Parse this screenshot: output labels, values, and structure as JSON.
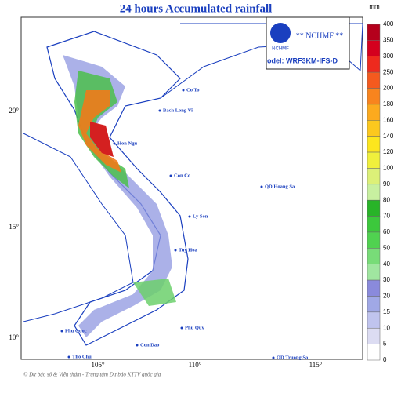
{
  "title": "24 hours Accumulated rainfall",
  "logo": {
    "badge": "NCHMF",
    "name": "** NCHMF **",
    "model": "odel: WRF3KM-IFS-D"
  },
  "colorbar": {
    "unit": "mm",
    "labels": [
      400,
      350,
      300,
      250,
      200,
      180,
      160,
      140,
      120,
      100,
      90,
      80,
      70,
      60,
      50,
      40,
      30,
      20,
      15,
      10,
      5,
      0
    ]
  },
  "axes": {
    "x_ticks": [
      "105°",
      "110°",
      "115°"
    ],
    "y_ticks": [
      "20°",
      "15°",
      "10°"
    ]
  },
  "places": [
    {
      "label": "Co To"
    },
    {
      "label": "Bach Long Vi"
    },
    {
      "label": "Hon Ngu"
    },
    {
      "label": "Con Co"
    },
    {
      "label": "Ly Son"
    },
    {
      "label": "QD Hoang Sa"
    },
    {
      "label": "Phu Quy"
    },
    {
      "label": "QD Truong Sa"
    },
    {
      "label": "Con Dao"
    },
    {
      "label": "Phu Quoc"
    },
    {
      "label": "Tho Chu"
    },
    {
      "label": "Tuy Hoa"
    }
  ],
  "credit": "© Dự báo số & Viễn thám - Trung tâm Dự báo KTTV quốc gia"
}
